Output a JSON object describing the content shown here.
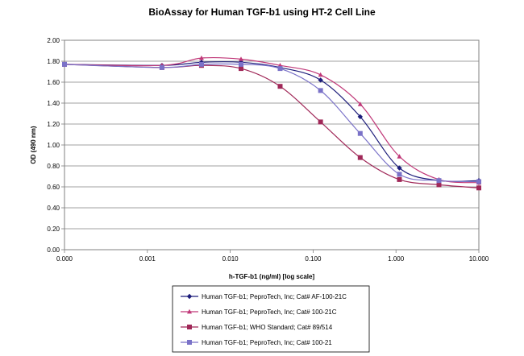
{
  "chart_data": {
    "type": "line",
    "title": "BioAssay for Human TGF-b1 using HT-2 Cell Line",
    "xlabel": "h-TGF-b1  (ng/ml) [log scale]",
    "ylabel": "OD  (490 nm)",
    "x_scale": "log",
    "x_ticks": [
      "0.000",
      "0.001",
      "0.010",
      "0.100",
      "1.000",
      "10.000"
    ],
    "y_ticks": [
      "0.00",
      "0.20",
      "0.40",
      "0.60",
      "0.80",
      "1.00",
      "1.20",
      "1.40",
      "1.60",
      "1.80",
      "2.00"
    ],
    "ylim": [
      0,
      2.0
    ],
    "grid": "horizontal",
    "legend_position": "bottom",
    "series": [
      {
        "name": "Human TGF-b1; PeproTech, Inc; Cat# AF-100-21C",
        "color": "#1c1c7a",
        "marker": "diamond",
        "points": [
          [
            0.0001,
            1.77
          ],
          [
            0.0015,
            1.76
          ],
          [
            0.0045,
            1.79
          ],
          [
            0.0135,
            1.79
          ],
          [
            0.04,
            1.74
          ],
          [
            0.123,
            1.62
          ],
          [
            0.37,
            1.27
          ],
          [
            1.1,
            0.78
          ],
          [
            3.3,
            0.66
          ],
          [
            10,
            0.66
          ]
        ]
      },
      {
        "name": "Human TGF-b1; PeproTech, Inc; Cat# 100-21C",
        "color": "#c03878",
        "marker": "triangle",
        "points": [
          [
            0.0001,
            1.77
          ],
          [
            0.0015,
            1.76
          ],
          [
            0.0045,
            1.83
          ],
          [
            0.0135,
            1.82
          ],
          [
            0.04,
            1.76
          ],
          [
            0.123,
            1.67
          ],
          [
            0.37,
            1.39
          ],
          [
            1.1,
            0.89
          ],
          [
            3.3,
            0.67
          ],
          [
            10,
            0.64
          ]
        ]
      },
      {
        "name": "Human TGF-b1; WHO Standard; Cat# 89/514",
        "color": "#a02858",
        "marker": "square",
        "points": [
          [
            0.0001,
            1.77
          ],
          [
            0.0015,
            1.74
          ],
          [
            0.0045,
            1.76
          ],
          [
            0.0135,
            1.73
          ],
          [
            0.04,
            1.56
          ],
          [
            0.123,
            1.22
          ],
          [
            0.37,
            0.88
          ],
          [
            1.1,
            0.67
          ],
          [
            3.3,
            0.62
          ],
          [
            10,
            0.59
          ]
        ]
      },
      {
        "name": "Human TGF-b1; PeproTech, Inc; Cat# 100-21",
        "color": "#7a72c8",
        "marker": "square",
        "points": [
          [
            0.0001,
            1.77
          ],
          [
            0.0015,
            1.74
          ],
          [
            0.0045,
            1.77
          ],
          [
            0.0135,
            1.77
          ],
          [
            0.04,
            1.73
          ],
          [
            0.123,
            1.52
          ],
          [
            0.37,
            1.11
          ],
          [
            1.1,
            0.72
          ],
          [
            3.3,
            0.66
          ],
          [
            10,
            0.65
          ]
        ]
      }
    ]
  }
}
